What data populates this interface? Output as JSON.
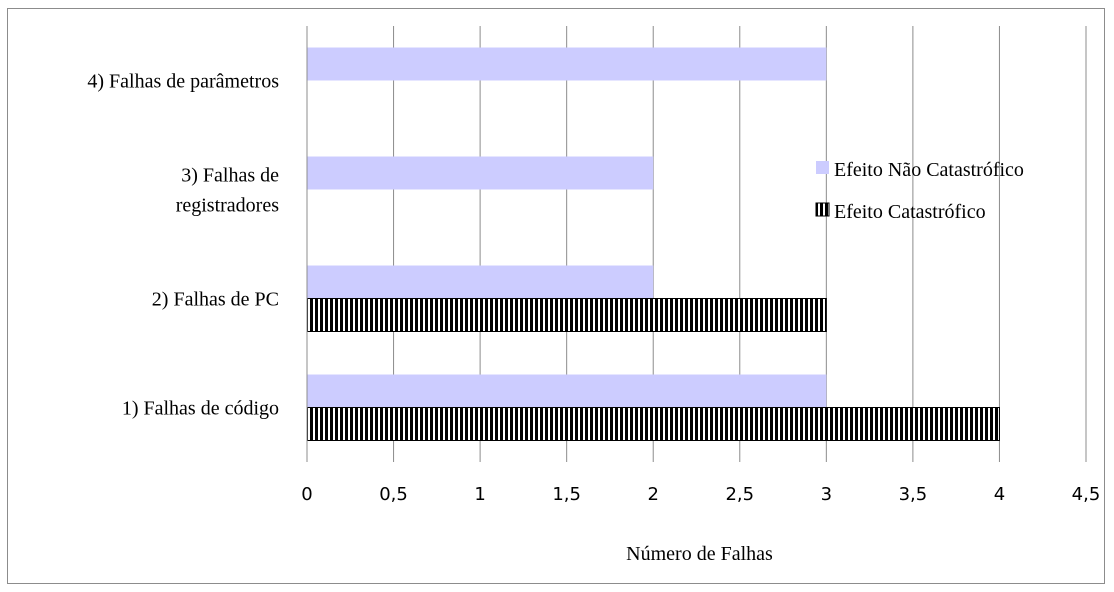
{
  "chart_data": {
    "type": "bar",
    "orientation": "horizontal",
    "categories": [
      "1) Falhas de código",
      "2) Falhas de PC",
      "3) Falhas de|registradores",
      "4) Falhas de parâmetros"
    ],
    "series": [
      {
        "name": "Efeito Não Catastrófico",
        "values": [
          3,
          2,
          2,
          3
        ],
        "color": "#ccccff"
      },
      {
        "name": "Efeito Catastrófico",
        "values": [
          4,
          3,
          0,
          0
        ],
        "color": "#000000",
        "pattern": "vertical-stripes"
      }
    ],
    "xlabel": "Número de Falhas",
    "ylabel": "",
    "xlim": [
      0,
      4.5
    ],
    "ticks": [
      0,
      0.5,
      1,
      1.5,
      2,
      2.5,
      3,
      3.5,
      4,
      4.5
    ],
    "tick_labels": [
      "0",
      "0,5",
      "1",
      "1,5",
      "2",
      "2,5",
      "3",
      "3,5",
      "4",
      "4,5"
    ],
    "grid": "vertical",
    "legend": "right"
  }
}
